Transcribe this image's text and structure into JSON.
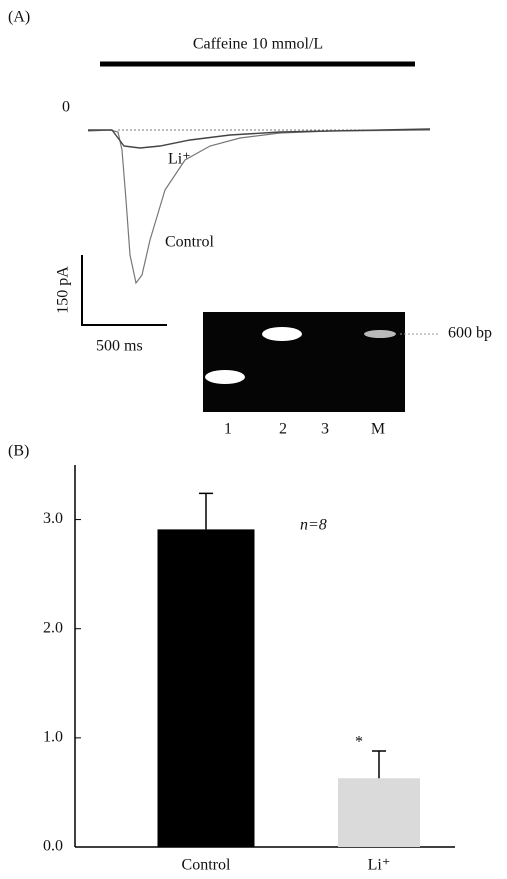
{
  "panel_a": {
    "label": "(A)",
    "stimulus": "Caffeine 10 mmol/L",
    "zero_label": "0",
    "trace_labels": [
      "Li⁺",
      "Control"
    ],
    "scale_y": "150 pA",
    "scale_x": "500 ms",
    "gel": {
      "lanes": [
        "1",
        "2",
        "3",
        "M"
      ],
      "marker": "600 bp"
    }
  },
  "chart_data": {
    "type": "bar",
    "panel_label": "(B)",
    "categories": [
      "Control",
      "Li⁺"
    ],
    "values": [
      2.91,
      0.63
    ],
    "errors": [
      0.33,
      0.25
    ],
    "colors": [
      "#000000",
      "#dadada"
    ],
    "annotation": "n=8",
    "significance": "*",
    "ylim": [
      0,
      3.5
    ],
    "yticks": [
      {
        "value": 0,
        "label": "0.0"
      },
      {
        "value": 1,
        "label": "1.0"
      },
      {
        "value": 2,
        "label": "2.0"
      },
      {
        "value": 3,
        "label": "3.0"
      }
    ]
  }
}
